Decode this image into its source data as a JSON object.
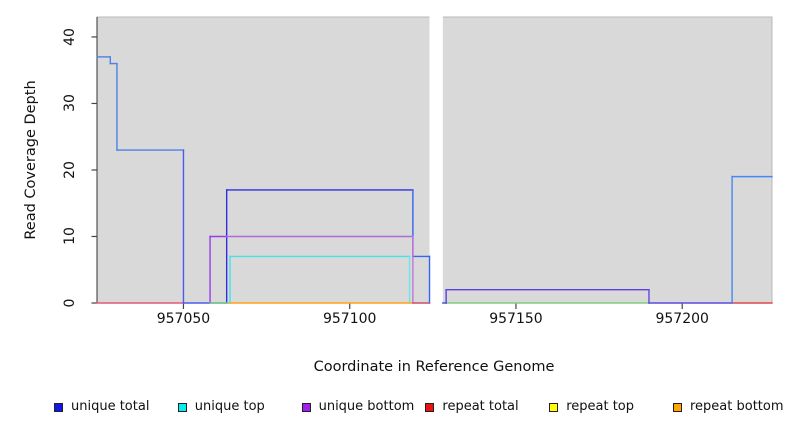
{
  "chart_data": {
    "type": "line",
    "subtype": "step-coverage",
    "title": "",
    "xlabel": "Coordinate in Reference Genome",
    "ylabel": "Read Coverage Depth",
    "xlim": [
      957024,
      957227
    ],
    "ylim": [
      0,
      43
    ],
    "xticks": [
      957050,
      957100,
      957150,
      957200
    ],
    "yticks": [
      0,
      10,
      20,
      30,
      40
    ],
    "grid": false,
    "plot_background": "#D9D9D9",
    "gap_region": {
      "x1": 957124,
      "x2": 957128,
      "color": "#FFFFFF"
    },
    "series": [
      {
        "name": "unique total",
        "color": "#2F2FE0",
        "steps": [
          [
            957024,
            37
          ],
          [
            957028,
            36
          ],
          [
            957030,
            23
          ],
          [
            957050,
            0
          ],
          [
            957063,
            17
          ],
          [
            957119,
            7
          ],
          [
            957124,
            0
          ],
          [
            957128,
            0
          ],
          [
            957129,
            2
          ],
          [
            957190,
            0
          ],
          [
            957215,
            19
          ],
          [
            957227,
            19
          ]
        ]
      },
      {
        "name": "unique top",
        "color": "#44E2E6",
        "steps": [
          [
            957024,
            0
          ],
          [
            957064,
            7
          ],
          [
            957118,
            0
          ],
          [
            957227,
            0
          ]
        ]
      },
      {
        "name": "unique bottom",
        "color": "#AF6BD8",
        "steps": [
          [
            957024,
            0
          ],
          [
            957058,
            10
          ],
          [
            957119,
            0
          ],
          [
            957129,
            2
          ],
          [
            957190,
            0
          ],
          [
            957227,
            0
          ]
        ]
      },
      {
        "name": "repeat total",
        "color": "#E2587A",
        "steps": [
          [
            957024,
            0
          ],
          [
            957227,
            0
          ]
        ]
      },
      {
        "name": "repeat top",
        "color": "#EEEE00",
        "steps": [
          [
            957024,
            0
          ],
          [
            957227,
            0
          ]
        ]
      },
      {
        "name": "repeat bottom",
        "color": "#FFA318",
        "steps": [
          [
            957024,
            0
          ],
          [
            957227,
            0
          ]
        ]
      }
    ],
    "render_lines": [
      {
        "name": "baseline-red-left",
        "segments": [
          [
            957024,
            957050,
            0,
            "#E2587A"
          ]
        ]
      },
      {
        "name": "unique-total-left",
        "segments": [
          [
            957024,
            957028,
            37,
            "#4D80E8"
          ],
          [
            957028,
            957030,
            36,
            "#4D80E8"
          ],
          [
            957030,
            957050,
            23,
            "#4D80E8"
          ],
          [
            957050,
            957063,
            0,
            "#4A5CEE"
          ],
          [
            957063,
            957119,
            17,
            "#2F2FE0"
          ],
          [
            957119,
            957124,
            7,
            "#3366F0"
          ],
          [
            957124,
            957124,
            0,
            "#3366F0"
          ]
        ]
      },
      {
        "name": "unique-bottom-line",
        "segments": [
          [
            957058,
            957058,
            0,
            "#9A3BE8"
          ],
          [
            957058,
            957063,
            10,
            "#9A3BE8"
          ],
          [
            957063,
            957119,
            10,
            "#AF6BD8"
          ],
          [
            957119,
            957119,
            0,
            "#C473DC"
          ]
        ]
      },
      {
        "name": "unique-top-line",
        "segments": [
          [
            957064,
            957064,
            0,
            "#44E2E6"
          ],
          [
            957064,
            957118,
            7,
            "#44E2E6"
          ],
          [
            957118,
            957118,
            0,
            "#6AE6EA"
          ]
        ]
      },
      {
        "name": "baseline-green-left",
        "segments": [
          [
            957058,
            957064,
            0,
            "#80CE80"
          ]
        ]
      },
      {
        "name": "baseline-orange",
        "segments": [
          [
            957064,
            957119,
            0,
            "#FFA318"
          ]
        ]
      },
      {
        "name": "baseline-crimson",
        "segments": [
          [
            957119,
            957124,
            0,
            "#C8506E"
          ]
        ]
      },
      {
        "name": "baseline-green-right",
        "segments": [
          [
            957128,
            957190,
            0,
            "#80CE80"
          ]
        ]
      },
      {
        "name": "baseline-red-right",
        "segments": [
          [
            957215,
            957227,
            0,
            "#E04848"
          ]
        ]
      },
      {
        "name": "unique-total-right",
        "segments": [
          [
            957128,
            957129,
            0,
            "#4A5CEE"
          ],
          [
            957129,
            957190,
            2,
            "#5B3FE6"
          ],
          [
            957190,
            957215,
            0,
            "#5B4BE0"
          ],
          [
            957215,
            957227,
            19,
            "#4788F0"
          ]
        ]
      }
    ]
  },
  "legend": {
    "items": [
      {
        "label": "unique total",
        "color": "#1414EE"
      },
      {
        "label": "unique top",
        "color": "#00EFEF"
      },
      {
        "label": "unique bottom",
        "color": "#A020F0"
      },
      {
        "label": "repeat total",
        "color": "#EE1111"
      },
      {
        "label": "repeat top",
        "color": "#FFFF00"
      },
      {
        "label": "repeat bottom",
        "color": "#FFA500"
      }
    ]
  }
}
